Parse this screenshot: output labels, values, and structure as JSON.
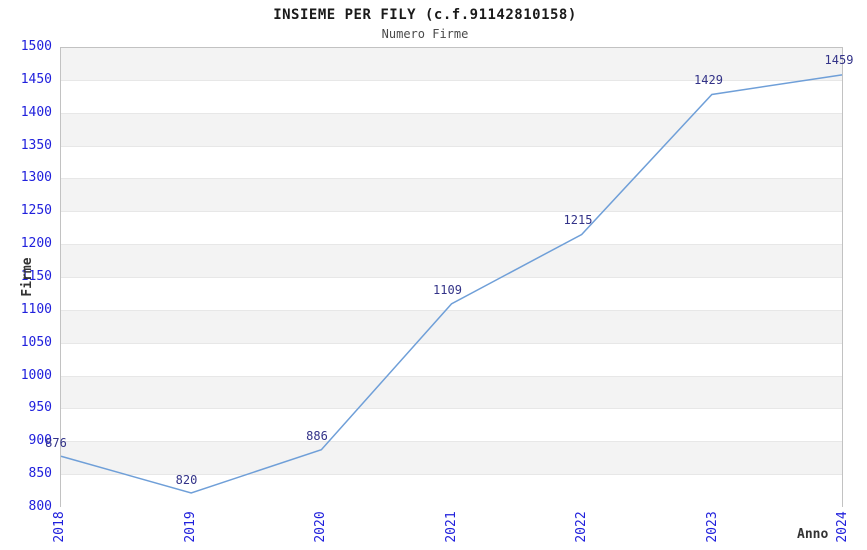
{
  "header": {
    "title": "INSIEME PER FILY (c.f.91142810158)",
    "subtitle": "Numero Firme"
  },
  "chart_data": {
    "type": "line",
    "title": "INSIEME PER FILY (c.f.91142810158)",
    "subtitle": "Numero Firme",
    "xlabel": "Anno",
    "ylabel": "Firme",
    "categories": [
      "2018",
      "2019",
      "2020",
      "2021",
      "2022",
      "2023",
      "2024"
    ],
    "values": [
      876,
      820,
      886,
      1109,
      1215,
      1429,
      1459
    ],
    "data_labels": [
      "876",
      "820",
      "886",
      "1109",
      "1215",
      "1429",
      "1459"
    ],
    "ylim": [
      800,
      1500
    ],
    "yticks": [
      800,
      850,
      900,
      950,
      1000,
      1050,
      1100,
      1150,
      1200,
      1250,
      1300,
      1350,
      1400,
      1450,
      1500
    ],
    "grid": true,
    "legend_position": "none",
    "colors": {
      "line": "#6f9fd8",
      "tick_label": "#2020dc",
      "data_label": "#333388",
      "band_gray": "#f3f3f3",
      "band_white": "#ffffff",
      "gridline": "#e7e7e7",
      "plot_border": "#c2c2c2",
      "title": "#1a1a1a",
      "axis_title": "#333333"
    }
  }
}
